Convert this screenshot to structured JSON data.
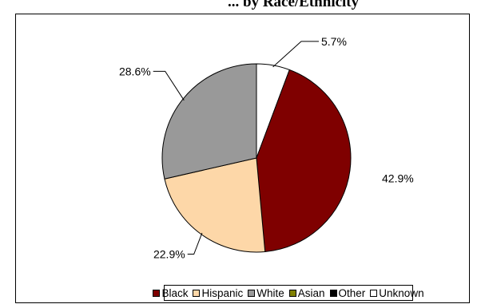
{
  "chart_data": {
    "type": "pie",
    "title": "... by Race/Ethnicity",
    "slices": [
      {
        "name": "Unknown",
        "value": 5.7,
        "label": "5.7%",
        "color": "#ffffff"
      },
      {
        "name": "Black",
        "value": 42.9,
        "label": "42.9%",
        "color": "#7f0000"
      },
      {
        "name": "Hispanic",
        "value": 22.9,
        "label": "22.9%",
        "color": "#fdd7a8"
      },
      {
        "name": "White",
        "value": 28.6,
        "label": "28.6%",
        "color": "#999999"
      }
    ],
    "legend": [
      {
        "name": "Black",
        "color": "#7f0000"
      },
      {
        "name": "Hispanic",
        "color": "#fdd7a8"
      },
      {
        "name": "White",
        "color": "#999999"
      },
      {
        "name": "Asian",
        "color": "#808000"
      },
      {
        "name": "Other",
        "color": "#000000"
      },
      {
        "name": "Unknown",
        "color": "#ffffff"
      }
    ],
    "legend_position": "bottom"
  }
}
